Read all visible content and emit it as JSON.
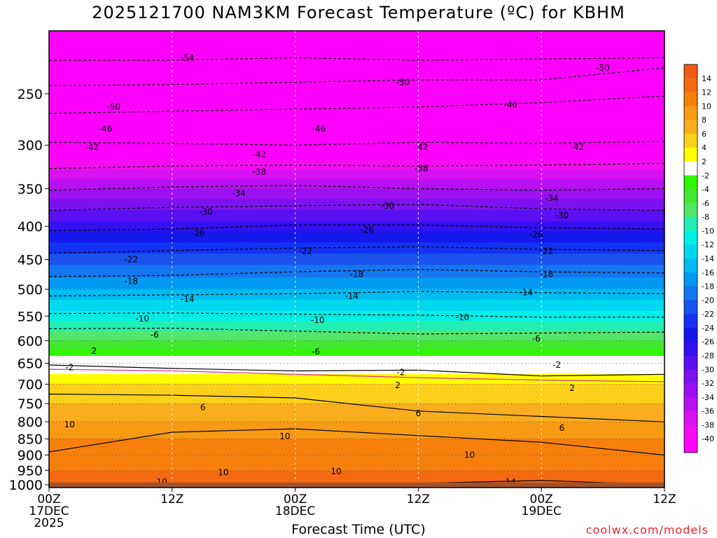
{
  "header": {
    "title": "2025121700 NAM3KM Forecast Temperature (ºC) for KBHM"
  },
  "footer": {
    "watermark": "coolwx.com/models",
    "xlabel": "Forecast Time (UTC)"
  },
  "chart_data": {
    "type": "heatmap",
    "title": "2025121700 NAM3KM Forecast Temperature (ºC) for KBHM",
    "xlabel": "Forecast Time (UTC)",
    "ylabel": "",
    "x_ticks": [
      {
        "hour": 0,
        "lines": [
          "00Z",
          "17DEC",
          "2025"
        ]
      },
      {
        "hour": 12,
        "lines": [
          "12Z"
        ]
      },
      {
        "hour": 24,
        "lines": [
          "00Z",
          "18DEC"
        ]
      },
      {
        "hour": 36,
        "lines": [
          "12Z"
        ]
      },
      {
        "hour": 48,
        "lines": [
          "00Z",
          "19DEC"
        ]
      },
      {
        "hour": 60,
        "lines": [
          "12Z"
        ]
      }
    ],
    "xlim": [
      0,
      60
    ],
    "y_scale": "log-pressure",
    "ylim": [
      1010,
      200
    ],
    "y_ticks": [
      250,
      300,
      350,
      400,
      450,
      500,
      550,
      600,
      650,
      700,
      750,
      800,
      850,
      900,
      950,
      1000
    ],
    "colorbar": {
      "labels": [
        14,
        12,
        10,
        8,
        6,
        4,
        2,
        -2,
        -4,
        -6,
        -8,
        -10,
        -12,
        -14,
        -16,
        -18,
        -20,
        -22,
        -24,
        -26,
        -28,
        -30,
        -32,
        -34,
        -36,
        -38,
        -40
      ],
      "colors": [
        "#f35a14",
        "#f56a10",
        "#f7800c",
        "#f79a14",
        "#f8ae1e",
        "#fbd01a",
        "#ffff00",
        "#ffffff",
        "#30f600",
        "#42e830",
        "#52e66a",
        "#22eeb4",
        "#00f0e8",
        "#00d8f0",
        "#00bcf2",
        "#0098f0",
        "#1476f0",
        "#1a52ee",
        "#1432f4",
        "#1418ec",
        "#3210f2",
        "#5a10f2",
        "#7c12f0",
        "#9c10f2",
        "#b810f2",
        "#d810f2",
        "#f40cf2",
        "#ff00ff"
      ]
    },
    "color_levels_temp": [
      -54,
      -50,
      -46,
      -42,
      -38,
      -34,
      -30,
      -26,
      -22,
      -18,
      -14,
      -10,
      -6,
      -2,
      2,
      6,
      10,
      14
    ],
    "profile": [
      {
        "p": 200,
        "t": -56
      },
      {
        "p": 250,
        "t": -51
      },
      {
        "p": 300,
        "t": -43
      },
      {
        "p": 350,
        "t": -34
      },
      {
        "p": 400,
        "t": -27
      },
      {
        "p": 450,
        "t": -21
      },
      {
        "p": 500,
        "t": -16
      },
      {
        "p": 550,
        "t": -11
      },
      {
        "p": 600,
        "t": -6
      },
      {
        "p": 650,
        "t": 0
      },
      {
        "p": 700,
        "t": 4
      },
      {
        "p": 750,
        "t": 6
      },
      {
        "p": 800,
        "t": 8
      },
      {
        "p": 850,
        "t": 10
      },
      {
        "p": 900,
        "t": 11
      },
      {
        "p": 950,
        "t": 12
      },
      {
        "p": 1000,
        "t": 13
      }
    ],
    "contours": [
      {
        "label": "-54",
        "p": [
          222,
          222,
          220,
          222,
          221,
          220
        ]
      },
      {
        "label": "-50",
        "p": [
          243,
          242,
          240,
          238,
          238,
          228
        ]
      },
      {
        "label": "-46",
        "p": [
          268,
          266,
          264,
          262,
          258,
          252
        ]
      },
      {
        "label": "-42",
        "p": [
          297,
          298,
          300,
          297,
          298,
          296
        ]
      },
      {
        "label": "-38",
        "p": [
          326,
          323,
          322,
          323,
          322,
          320
        ]
      },
      {
        "label": "-34",
        "p": [
          352,
          348,
          346,
          350,
          352,
          350
        ]
      },
      {
        "label": "-30",
        "p": [
          378,
          374,
          372,
          370,
          376,
          378
        ]
      },
      {
        "label": "-26",
        "p": [
          406,
          404,
          398,
          398,
          402,
          404
        ]
      },
      {
        "label": "-22",
        "p": [
          440,
          436,
          432,
          430,
          434,
          436
        ]
      },
      {
        "label": "-18",
        "p": [
          478,
          476,
          470,
          466,
          470,
          472
        ]
      },
      {
        "label": "-14",
        "p": [
          512,
          510,
          508,
          504,
          506,
          508
        ]
      },
      {
        "label": "-10",
        "p": [
          545,
          544,
          546,
          548,
          552,
          552
        ]
      },
      {
        "label": "-6",
        "p": [
          575,
          574,
          580,
          586,
          584,
          582
        ]
      },
      {
        "label": "2",
        "p": [
          654,
          662,
          668,
          666,
          680,
          676
        ]
      },
      {
        "label": "6",
        "p": [
          725,
          728,
          735,
          770,
          785,
          800
        ]
      },
      {
        "label": "10",
        "p": [
          890,
          830,
          820,
          840,
          860,
          900
        ]
      },
      {
        "label": "14",
        "p": [
          1000,
          1000,
          1000,
          995,
          985,
          1000
        ]
      }
    ],
    "contour_labels": [
      {
        "text": "-54",
        "hour": 13.5,
        "p": 220
      },
      {
        "text": "-50",
        "hour": 6.3,
        "p": 262
      },
      {
        "text": "-50",
        "hour": 34.5,
        "p": 240
      },
      {
        "text": "-50",
        "hour": 54.0,
        "p": 228
      },
      {
        "text": "-46",
        "hour": 5.5,
        "p": 283
      },
      {
        "text": "-46",
        "hour": 26.3,
        "p": 283
      },
      {
        "text": "-46",
        "hour": 45.0,
        "p": 260
      },
      {
        "text": "-42",
        "hour": 4.2,
        "p": 302
      },
      {
        "text": "-42",
        "hour": 20.5,
        "p": 310
      },
      {
        "text": "-42",
        "hour": 36.3,
        "p": 302
      },
      {
        "text": "-42",
        "hour": 51.5,
        "p": 302
      },
      {
        "text": "-38",
        "hour": 20.5,
        "p": 330
      },
      {
        "text": "-38",
        "hour": 36.3,
        "p": 326
      },
      {
        "text": "-34",
        "hour": 18.5,
        "p": 356
      },
      {
        "text": "-34",
        "hour": 49.0,
        "p": 362
      },
      {
        "text": "-30",
        "hour": 15.3,
        "p": 380
      },
      {
        "text": "-30",
        "hour": 33.0,
        "p": 372
      },
      {
        "text": "-30",
        "hour": 50.0,
        "p": 385
      },
      {
        "text": "-26",
        "hour": 14.5,
        "p": 410
      },
      {
        "text": "-26",
        "hour": 31.0,
        "p": 405
      },
      {
        "text": "-26",
        "hour": 47.5,
        "p": 412
      },
      {
        "text": "-22",
        "hour": 8.0,
        "p": 450
      },
      {
        "text": "-22",
        "hour": 25.0,
        "p": 437
      },
      {
        "text": "-22",
        "hour": 48.5,
        "p": 437
      },
      {
        "text": "-18",
        "hour": 8.0,
        "p": 486
      },
      {
        "text": "-18",
        "hour": 30.0,
        "p": 474
      },
      {
        "text": "-18",
        "hour": 48.5,
        "p": 474
      },
      {
        "text": "-14",
        "hour": 13.5,
        "p": 518
      },
      {
        "text": "-14",
        "hour": 29.5,
        "p": 512
      },
      {
        "text": "-14",
        "hour": 46.5,
        "p": 506
      },
      {
        "text": "-10",
        "hour": 9.1,
        "p": 555
      },
      {
        "text": "-10",
        "hour": 26.2,
        "p": 558
      },
      {
        "text": "-10",
        "hour": 40.3,
        "p": 552
      },
      {
        "text": "-6",
        "hour": 10.3,
        "p": 588
      },
      {
        "text": "-6",
        "hour": 26.0,
        "p": 624
      },
      {
        "text": "-6",
        "hour": 47.5,
        "p": 596
      },
      {
        "text": "2",
        "hour": 4.4,
        "p": 622
      },
      {
        "text": "-2",
        "hour": 2.0,
        "p": 660
      },
      {
        "text": "-2",
        "hour": 34.3,
        "p": 671
      },
      {
        "text": "-2",
        "hour": 49.5,
        "p": 654
      },
      {
        "text": "2",
        "hour": 34.0,
        "p": 703
      },
      {
        "text": "2",
        "hour": 51.0,
        "p": 710
      },
      {
        "text": "6",
        "hour": 15.0,
        "p": 760
      },
      {
        "text": "6",
        "hour": 36.0,
        "p": 776
      },
      {
        "text": "6",
        "hour": 50.0,
        "p": 818
      },
      {
        "text": "10",
        "hour": 2.0,
        "p": 808
      },
      {
        "text": "10",
        "hour": 23.0,
        "p": 842
      },
      {
        "text": "10",
        "hour": 41.0,
        "p": 900
      },
      {
        "text": "10",
        "hour": 17.0,
        "p": 957
      },
      {
        "text": "10",
        "hour": 28.0,
        "p": 954
      },
      {
        "text": "10",
        "hour": 11.0,
        "p": 990
      },
      {
        "text": "14",
        "hour": 45.0,
        "p": 990
      }
    ],
    "ground": {
      "p_top": 992,
      "color": "#a0522d"
    },
    "grid": true
  }
}
